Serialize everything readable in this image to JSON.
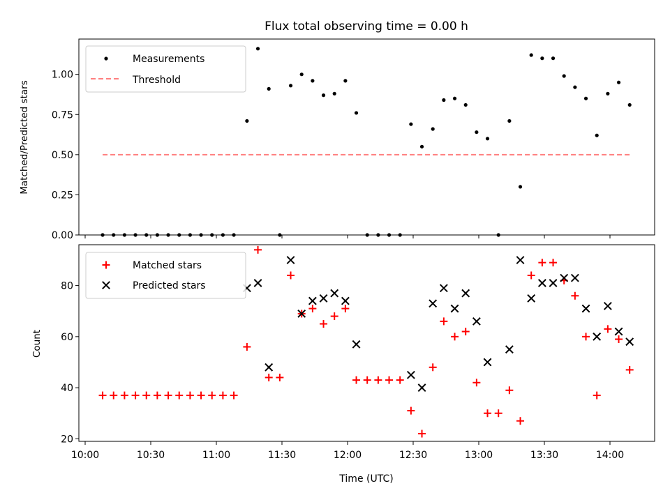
{
  "chart_data": [
    {
      "type": "scatter",
      "title": "Flux total observing time = 0.00 h",
      "xlabel": "",
      "ylabel": "Matched/Predicted stars",
      "ylim": [
        0,
        1.22
      ],
      "yticks": [
        "0.00",
        "0.25",
        "0.50",
        "0.75",
        "1.00"
      ],
      "ytick_values": [
        0,
        0.25,
        0.5,
        0.75,
        1.0
      ],
      "legend_position": "top-left",
      "series": [
        {
          "name": "Measurements",
          "marker": "dot",
          "color": "#000000",
          "points": [
            [
              "10:08",
              0
            ],
            [
              "10:13",
              0
            ],
            [
              "10:18",
              0
            ],
            [
              "10:23",
              0
            ],
            [
              "10:28",
              0
            ],
            [
              "10:33",
              0
            ],
            [
              "10:38",
              0
            ],
            [
              "10:43",
              0
            ],
            [
              "10:48",
              0
            ],
            [
              "10:53",
              0
            ],
            [
              "10:58",
              0
            ],
            [
              "11:03",
              0
            ],
            [
              "11:08",
              0
            ],
            [
              "11:14",
              0.71
            ],
            [
              "11:19",
              1.16
            ],
            [
              "11:24",
              0.91
            ],
            [
              "11:29",
              0
            ],
            [
              "11:34",
              0.93
            ],
            [
              "11:39",
              1.0
            ],
            [
              "11:44",
              0.96
            ],
            [
              "11:49",
              0.87
            ],
            [
              "11:54",
              0.88
            ],
            [
              "11:59",
              0.96
            ],
            [
              "12:04",
              0.76
            ],
            [
              "12:09",
              0
            ],
            [
              "12:14",
              0
            ],
            [
              "12:19",
              0
            ],
            [
              "12:24",
              0
            ],
            [
              "12:29",
              0.69
            ],
            [
              "12:34",
              0.55
            ],
            [
              "12:39",
              0.66
            ],
            [
              "12:44",
              0.84
            ],
            [
              "12:49",
              0.85
            ],
            [
              "12:54",
              0.81
            ],
            [
              "12:59",
              0.64
            ],
            [
              "13:04",
              0.6
            ],
            [
              "13:09",
              0
            ],
            [
              "13:14",
              0.71
            ],
            [
              "13:19",
              0.3
            ],
            [
              "13:24",
              1.12
            ],
            [
              "13:29",
              1.1
            ],
            [
              "13:34",
              1.1
            ],
            [
              "13:39",
              0.99
            ],
            [
              "13:44",
              0.92
            ],
            [
              "13:49",
              0.85
            ],
            [
              "13:54",
              0.62
            ],
            [
              "13:59",
              0.88
            ],
            [
              "14:04",
              0.95
            ],
            [
              "14:09",
              0.81
            ]
          ]
        },
        {
          "name": "Threshold",
          "marker": "dashed-line",
          "color": "#ff7f7f",
          "points": [
            [
              "10:08",
              0.5
            ],
            [
              "14:09",
              0.5
            ]
          ]
        }
      ]
    },
    {
      "type": "scatter",
      "title": "",
      "xlabel": "Time (UTC)",
      "ylabel": "Count",
      "ylim": [
        19,
        96
      ],
      "yticks": [
        "20",
        "40",
        "60",
        "80"
      ],
      "ytick_values": [
        20,
        40,
        60,
        80
      ],
      "xticks": [
        "10:00",
        "10:30",
        "11:00",
        "11:30",
        "12:00",
        "12:30",
        "13:00",
        "13:30",
        "14:00"
      ],
      "legend_position": "top-left",
      "series": [
        {
          "name": "Matched stars",
          "marker": "plus",
          "color": "#ff0000",
          "points": [
            [
              "10:08",
              37
            ],
            [
              "10:13",
              37
            ],
            [
              "10:18",
              37
            ],
            [
              "10:23",
              37
            ],
            [
              "10:28",
              37
            ],
            [
              "10:33",
              37
            ],
            [
              "10:38",
              37
            ],
            [
              "10:43",
              37
            ],
            [
              "10:48",
              37
            ],
            [
              "10:53",
              37
            ],
            [
              "10:58",
              37
            ],
            [
              "11:03",
              37
            ],
            [
              "11:08",
              37
            ],
            [
              "11:14",
              56
            ],
            [
              "11:19",
              94
            ],
            [
              "11:24",
              44
            ],
            [
              "11:29",
              44
            ],
            [
              "11:34",
              84
            ],
            [
              "11:39",
              69
            ],
            [
              "11:44",
              71
            ],
            [
              "11:49",
              65
            ],
            [
              "11:54",
              68
            ],
            [
              "11:59",
              71
            ],
            [
              "12:04",
              43
            ],
            [
              "12:09",
              43
            ],
            [
              "12:14",
              43
            ],
            [
              "12:19",
              43
            ],
            [
              "12:24",
              43
            ],
            [
              "12:29",
              31
            ],
            [
              "12:34",
              22
            ],
            [
              "12:39",
              48
            ],
            [
              "12:44",
              66
            ],
            [
              "12:49",
              60
            ],
            [
              "12:54",
              62
            ],
            [
              "12:59",
              42
            ],
            [
              "13:04",
              30
            ],
            [
              "13:09",
              30
            ],
            [
              "13:14",
              39
            ],
            [
              "13:19",
              27
            ],
            [
              "13:24",
              84
            ],
            [
              "13:29",
              89
            ],
            [
              "13:34",
              89
            ],
            [
              "13:39",
              82
            ],
            [
              "13:44",
              76
            ],
            [
              "13:49",
              60
            ],
            [
              "13:54",
              37
            ],
            [
              "13:59",
              63
            ],
            [
              "14:04",
              59
            ],
            [
              "14:09",
              47
            ]
          ]
        },
        {
          "name": "Predicted stars",
          "marker": "x",
          "color": "#000000",
          "points": [
            [
              "11:14",
              79
            ],
            [
              "11:19",
              81
            ],
            [
              "11:24",
              48
            ],
            [
              "11:34",
              90
            ],
            [
              "11:39",
              69
            ],
            [
              "11:44",
              74
            ],
            [
              "11:49",
              75
            ],
            [
              "11:54",
              77
            ],
            [
              "11:59",
              74
            ],
            [
              "12:04",
              57
            ],
            [
              "12:29",
              45
            ],
            [
              "12:34",
              40
            ],
            [
              "12:39",
              73
            ],
            [
              "12:44",
              79
            ],
            [
              "12:49",
              71
            ],
            [
              "12:54",
              77
            ],
            [
              "12:59",
              66
            ],
            [
              "13:04",
              50
            ],
            [
              "13:14",
              55
            ],
            [
              "13:19",
              90
            ],
            [
              "13:24",
              75
            ],
            [
              "13:29",
              81
            ],
            [
              "13:34",
              81
            ],
            [
              "13:39",
              83
            ],
            [
              "13:44",
              83
            ],
            [
              "13:49",
              71
            ],
            [
              "13:54",
              60
            ],
            [
              "13:59",
              72
            ],
            [
              "14:04",
              62
            ],
            [
              "14:09",
              58
            ]
          ]
        }
      ]
    }
  ]
}
